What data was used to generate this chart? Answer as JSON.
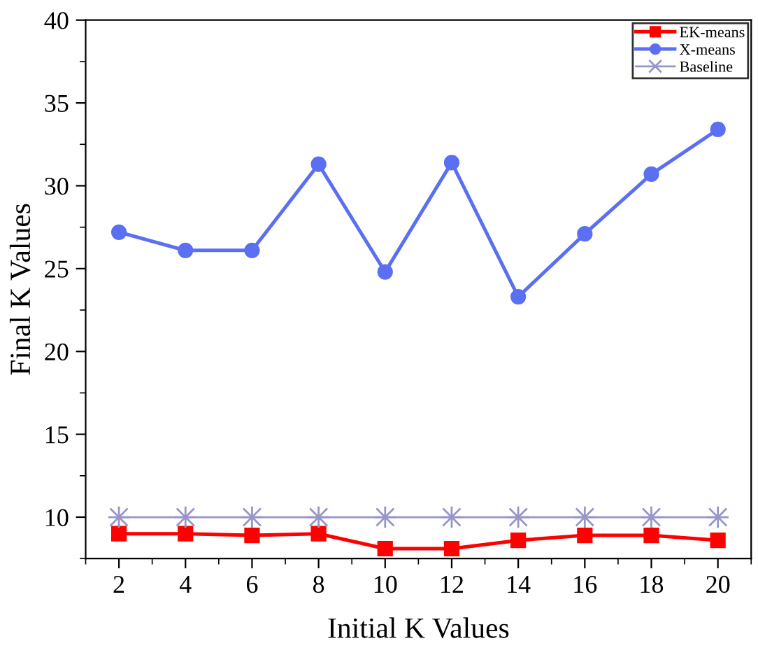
{
  "chart_data": {
    "type": "line",
    "xlabel": "Initial K Values",
    "ylabel": "Final K Values",
    "x": [
      2,
      4,
      6,
      8,
      10,
      12,
      14,
      16,
      18,
      20
    ],
    "series": [
      {
        "name": "EK-means",
        "color": "#ff0000",
        "marker": "square",
        "values": [
          9.0,
          9.0,
          8.9,
          9.0,
          8.1,
          8.1,
          8.6,
          8.9,
          8.9,
          8.6
        ]
      },
      {
        "name": "X-means",
        "color": "#5b6ff2",
        "marker": "circle",
        "values": [
          27.2,
          26.1,
          26.1,
          31.3,
          24.8,
          31.4,
          23.3,
          27.1,
          30.7,
          33.4
        ]
      },
      {
        "name": "Baseline",
        "color": "#9896c8",
        "marker": "cross",
        "values": [
          10,
          10,
          10,
          10,
          10,
          10,
          10,
          10,
          10,
          10
        ]
      }
    ],
    "xlim": [
      1,
      21
    ],
    "xticks": [
      2,
      4,
      6,
      8,
      10,
      12,
      14,
      16,
      18,
      20
    ],
    "ylim": [
      7.5,
      40
    ],
    "yticks": [
      10,
      15,
      20,
      25,
      30,
      35,
      40
    ],
    "grid": false,
    "legend": "top right",
    "line_style": "solid"
  }
}
